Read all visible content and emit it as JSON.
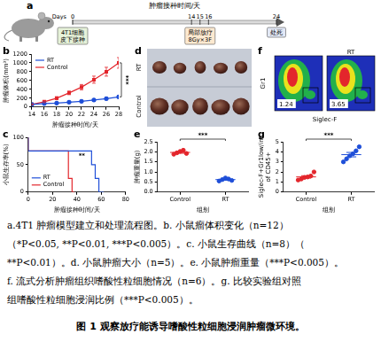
{
  "panel_a": {
    "panel": "a",
    "title": "肿瘤接种时间/天",
    "unit": "Days",
    "days": [
      0,
      14,
      15,
      16,
      24
    ],
    "events": [
      {
        "day": 0,
        "text": [
          "4T1细胞",
          "皮下接种"
        ]
      },
      {
        "day": 15,
        "text": [
          "局部放疗",
          "8Gy×3F"
        ]
      },
      {
        "day": 24,
        "text": [
          "处死"
        ]
      }
    ]
  },
  "chart_data": [
    {
      "panel": "b",
      "type": "line",
      "x_label": "肿瘤接种时间/天",
      "y_label": "肿瘤体积(mm³)",
      "x": [
        14,
        16,
        18,
        20,
        22,
        24,
        26,
        28
      ],
      "xlim": [
        14,
        28
      ],
      "xticks": [
        14,
        16,
        18,
        20,
        22,
        24,
        26,
        28
      ],
      "ylim": [
        0,
        1200
      ],
      "yticks": [
        0,
        200,
        400,
        600,
        800,
        1000,
        1200
      ],
      "grid": false,
      "legend": "upper left",
      "annotations": [
        "***"
      ],
      "series": [
        {
          "name": "RT",
          "color": "#1f4fd8",
          "marker": "circle",
          "values": [
            60,
            80,
            90,
            110,
            130,
            160,
            190,
            230
          ],
          "errors": [
            10,
            12,
            15,
            18,
            20,
            25,
            28,
            30
          ]
        },
        {
          "name": "Control",
          "color": "#e3262c",
          "marker": "square",
          "values": [
            60,
            120,
            200,
            320,
            450,
            620,
            800,
            1000
          ],
          "errors": [
            10,
            20,
            30,
            40,
            60,
            80,
            100,
            120
          ]
        }
      ]
    },
    {
      "panel": "c",
      "type": "line",
      "line_style": "step",
      "marker": "none",
      "x_label": "肿瘤接种时间/天",
      "y_label": "小鼠生存率(%)",
      "xlim": [
        0,
        80
      ],
      "xticks": [
        0,
        20,
        40,
        60,
        80
      ],
      "ylim": [
        0,
        100
      ],
      "yticks": [
        0,
        50,
        100
      ],
      "grid": false,
      "legend": "lower left",
      "annotations": [
        "**"
      ],
      "series": [
        {
          "name": "RT",
          "color": "#1f4fd8",
          "x": [
            0,
            52,
            55,
            58,
            62
          ],
          "values": [
            100,
            75,
            50,
            25,
            0
          ]
        },
        {
          "name": "Control",
          "color": "#e3262c",
          "x": [
            0,
            33,
            36,
            38
          ],
          "values": [
            100,
            75,
            25,
            0
          ]
        }
      ]
    },
    {
      "panel": "e",
      "type": "scatter",
      "marker": "circle",
      "x_label": "组别",
      "y_label": "肿瘤重量(g)",
      "categories": [
        "Control",
        "RT"
      ],
      "colors": [
        "#e3262c",
        "#1f4fd8"
      ],
      "values": [
        [
          1.88,
          1.95,
          2.02,
          2.08,
          1.92
        ],
        [
          0.55,
          0.62,
          0.7,
          0.65,
          0.58
        ]
      ],
      "means": [
        1.97,
        0.62
      ],
      "errors": [
        0.04,
        0.03
      ],
      "ylim": [
        0,
        2.5
      ],
      "yticks": [
        {
          "value": 0,
          "label": "0.0"
        },
        0.5,
        {
          "value": 1,
          "label": "1.0"
        },
        1.5,
        {
          "value": 2,
          "label": "2.0"
        },
        2.5
      ],
      "grid": false,
      "annotations": [
        "***"
      ]
    },
    {
      "panel": "g",
      "type": "scatter",
      "marker": "circle",
      "x_label": "组别",
      "y_label": "Siglec-F+Gr1low/int of CD45+",
      "categories": [
        "Control",
        "RT"
      ],
      "colors": [
        "#e3262c",
        "#1f4fd8"
      ],
      "values": [
        [
          1.2,
          1.3,
          1.45,
          1.5,
          1.6,
          2.0
        ],
        [
          3.0,
          3.3,
          3.6,
          3.8,
          4.1,
          4.5
        ]
      ],
      "means": [
        1.51,
        3.72
      ],
      "errors": [
        0.12,
        0.22
      ],
      "ylim": [
        0,
        5
      ],
      "yticks": [
        0,
        1,
        2,
        3,
        4,
        5
      ],
      "grid": false,
      "annotations": [
        "***"
      ]
    }
  ],
  "panel_d": {
    "panel": "d",
    "rows": [
      "RT",
      "Control"
    ]
  },
  "panel_f": {
    "panel": "f",
    "x_label": "Siglec-F",
    "y_label": "Gr1",
    "plots": [
      {
        "value": 1.24
      },
      {
        "title": "RT",
        "value": 3.65
      }
    ]
  },
  "caption": {
    "lines": [
      "a.4T1 肿瘤模型建立和处理流程图。b. 小鼠瘤体积变化（n=12）",
      "（*P<0.05, **P<0.01, ***P<0.005）。c. 小鼠生存曲线（n=8）（",
      "**P<0.01）。d. 小鼠肿瘤大小（n=5）。e. 小鼠肿瘤重量（***P<0.005）。",
      "f. 流式分析肿瘤组织嗜酸性粒细胞情况（n=6）。g. 比较实验组对照",
      "组嗜酸性粒细胞浸润比例（***P<0.005）。"
    ],
    "title": "图 1 观察放疗能诱导嗜酸性粒细胞浸润肿瘤微环境。"
  }
}
